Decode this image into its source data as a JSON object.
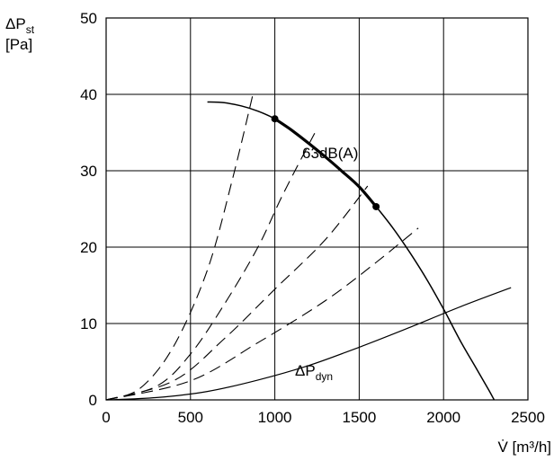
{
  "chart_data": {
    "type": "line",
    "xlabel": {
      "prefix": "V̇",
      "unit": "[m³/h]"
    },
    "ylabel": {
      "main": "ΔP",
      "sub": "st",
      "unit": "[Pa]"
    },
    "xlim": [
      0,
      2500
    ],
    "ylim": [
      0,
      50
    ],
    "x_ticks": [
      "0",
      "500",
      "1000",
      "1500",
      "2000",
      "2500"
    ],
    "y_ticks": [
      "0",
      "10",
      "20",
      "30",
      "40",
      "50"
    ],
    "grid": true,
    "series": [
      {
        "style": "solid",
        "points": [
          [
            600,
            39
          ],
          [
            700,
            38.9
          ],
          [
            800,
            38.5
          ],
          [
            900,
            37.8
          ],
          [
            1000,
            36.8
          ],
          [
            1100,
            35.3
          ],
          [
            1200,
            33.6
          ],
          [
            1300,
            31.8
          ],
          [
            1400,
            29.9
          ],
          [
            1500,
            27.9
          ],
          [
            1600,
            25.3
          ],
          [
            1700,
            22.5
          ],
          [
            1800,
            19.3
          ],
          [
            1900,
            15.8
          ],
          [
            2000,
            11.9
          ],
          [
            2100,
            7.7
          ],
          [
            2200,
            3.9
          ],
          [
            2270,
            1.2
          ],
          [
            2300,
            0
          ]
        ]
      },
      {
        "name": "63dB(A)",
        "style": "bold",
        "points": [
          [
            1000,
            36.8
          ],
          [
            1100,
            35.3
          ],
          [
            1200,
            33.6
          ],
          [
            1300,
            31.8
          ],
          [
            1400,
            29.9
          ],
          [
            1500,
            27.9
          ],
          [
            1600,
            25.3
          ]
        ],
        "markers": [
          [
            1000,
            36.8
          ],
          [
            1600,
            25.3
          ]
        ]
      },
      {
        "name": "ΔP_dyn",
        "style": "thin",
        "points": [
          [
            0,
            0
          ],
          [
            300,
            0.3
          ],
          [
            600,
            1.1
          ],
          [
            900,
            2.6
          ],
          [
            1200,
            4.5
          ],
          [
            1500,
            6.9
          ],
          [
            1800,
            9.5
          ],
          [
            2100,
            12.2
          ],
          [
            2400,
            14.7
          ]
        ]
      },
      {
        "style": "dashed",
        "points": [
          [
            0,
            0
          ],
          [
            200,
            1.5
          ],
          [
            400,
            7
          ],
          [
            600,
            17
          ],
          [
            750,
            29
          ],
          [
            870,
            40
          ]
        ]
      },
      {
        "style": "dashed",
        "points": [
          [
            0,
            0
          ],
          [
            300,
            1.8
          ],
          [
            500,
            6
          ],
          [
            700,
            12.5
          ],
          [
            900,
            20
          ],
          [
            1050,
            27
          ],
          [
            1250,
            35.5
          ]
        ]
      },
      {
        "style": "dashed",
        "points": [
          [
            0,
            0
          ],
          [
            400,
            2.5
          ],
          [
            700,
            8
          ],
          [
            1000,
            14.5
          ],
          [
            1300,
            21
          ],
          [
            1550,
            28
          ]
        ]
      },
      {
        "style": "dashed",
        "points": [
          [
            0,
            0
          ],
          [
            500,
            2.5
          ],
          [
            900,
            7.5
          ],
          [
            1300,
            13
          ],
          [
            1600,
            18
          ],
          [
            1850,
            22.5
          ]
        ]
      }
    ],
    "annotations": [
      {
        "text": "63dB(A)"
      },
      {
        "text": "ΔP",
        "sub": "dyn"
      }
    ]
  }
}
